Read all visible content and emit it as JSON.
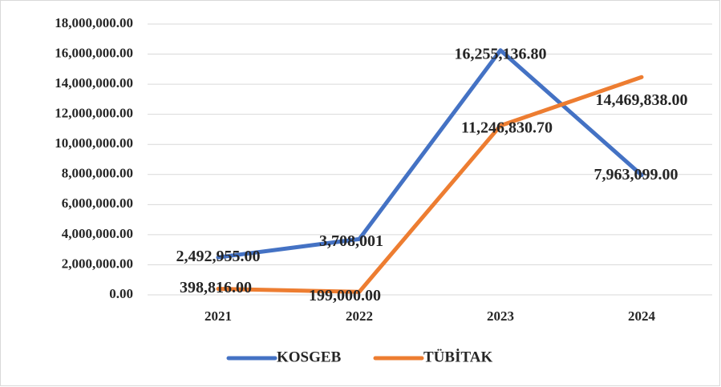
{
  "chart_data": {
    "type": "line",
    "categories": [
      "2021",
      "2022",
      "2023",
      "2024"
    ],
    "series": [
      {
        "name": "KOSGEB",
        "color": "#4472c4",
        "values": [
          2492955,
          3708001,
          16255136.8,
          7963099
        ],
        "value_labels": [
          "2,492,955.00",
          "3,708,001",
          "16,255,136.80",
          "7,963,099.00"
        ]
      },
      {
        "name": "TÜBİTAK",
        "color": "#ed7d31",
        "values": [
          398816,
          199000,
          11246830.7,
          14469838
        ],
        "value_labels": [
          "398,816.00",
          "199,000.00",
          "11,246,830.70",
          "14,469,838.00"
        ]
      }
    ],
    "ylim": [
      0,
      18000000
    ],
    "yticks": [
      {
        "value": 0,
        "label": "0.00"
      },
      {
        "value": 2000000,
        "label": "2,000,000.00"
      },
      {
        "value": 4000000,
        "label": "4,000,000.00"
      },
      {
        "value": 6000000,
        "label": "6,000,000.00"
      },
      {
        "value": 8000000,
        "label": "8,000,000.00"
      },
      {
        "value": 10000000,
        "label": "10,000,000.00"
      },
      {
        "value": 12000000,
        "label": "12,000,000.00"
      },
      {
        "value": 14000000,
        "label": "14,000,000.00"
      },
      {
        "value": 16000000,
        "label": "16,000,000.00"
      },
      {
        "value": 18000000,
        "label": "18,000,000.00"
      }
    ],
    "grid": true,
    "legend": "bottom"
  }
}
